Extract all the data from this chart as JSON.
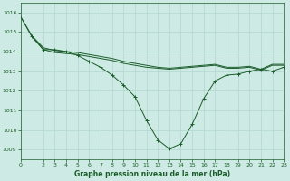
{
  "background_color": "#ceeae4",
  "grid_color": "#b0d8d0",
  "line_color": "#1a5c2a",
  "title": "Graphe pression niveau de la mer (hPa)",
  "xlim": [
    0,
    23
  ],
  "ylim": [
    1008.5,
    1016.5
  ],
  "yticks": [
    1009,
    1010,
    1011,
    1012,
    1013,
    1014,
    1015,
    1016
  ],
  "xticks": [
    0,
    2,
    3,
    4,
    5,
    6,
    7,
    8,
    9,
    10,
    11,
    12,
    13,
    14,
    15,
    16,
    17,
    18,
    19,
    20,
    21,
    22,
    23
  ],
  "line1_x": [
    0,
    1,
    2,
    3,
    4,
    5,
    6,
    7,
    8,
    9,
    10,
    11,
    12,
    13,
    14,
    15,
    16,
    17,
    18,
    19,
    20,
    21,
    22,
    23
  ],
  "line1_y": [
    1015.8,
    1014.75,
    1014.1,
    1013.95,
    1013.9,
    1013.85,
    1013.75,
    1013.65,
    1013.55,
    1013.4,
    1013.3,
    1013.2,
    1013.15,
    1013.1,
    1013.15,
    1013.2,
    1013.25,
    1013.3,
    1013.15,
    1013.15,
    1013.2,
    1013.05,
    1013.3,
    1013.3
  ],
  "line2_x": [
    0,
    1,
    2,
    3,
    4,
    5,
    6,
    7,
    8,
    9,
    10,
    11,
    12,
    13,
    14,
    15,
    16,
    17,
    18,
    19,
    20,
    21,
    22,
    23
  ],
  "line2_y": [
    1015.8,
    1014.8,
    1014.2,
    1014.05,
    1014.0,
    1013.95,
    1013.85,
    1013.75,
    1013.65,
    1013.5,
    1013.4,
    1013.3,
    1013.2,
    1013.15,
    1013.2,
    1013.25,
    1013.3,
    1013.35,
    1013.2,
    1013.2,
    1013.25,
    1013.1,
    1013.35,
    1013.35
  ],
  "line3_x": [
    1,
    2,
    3,
    4,
    5,
    6,
    7,
    8,
    9,
    10,
    11,
    12,
    13,
    14,
    15,
    16,
    17,
    18,
    19,
    20,
    21,
    22,
    23
  ],
  "line3_y": [
    1014.8,
    1014.1,
    1014.1,
    1014.0,
    1013.8,
    1013.5,
    1013.2,
    1012.8,
    1012.3,
    1011.7,
    1010.5,
    1009.5,
    1009.05,
    1009.3,
    1010.3,
    1011.6,
    1012.5,
    1012.8,
    1012.85,
    1013.0,
    1013.1,
    1013.0,
    1013.2
  ]
}
